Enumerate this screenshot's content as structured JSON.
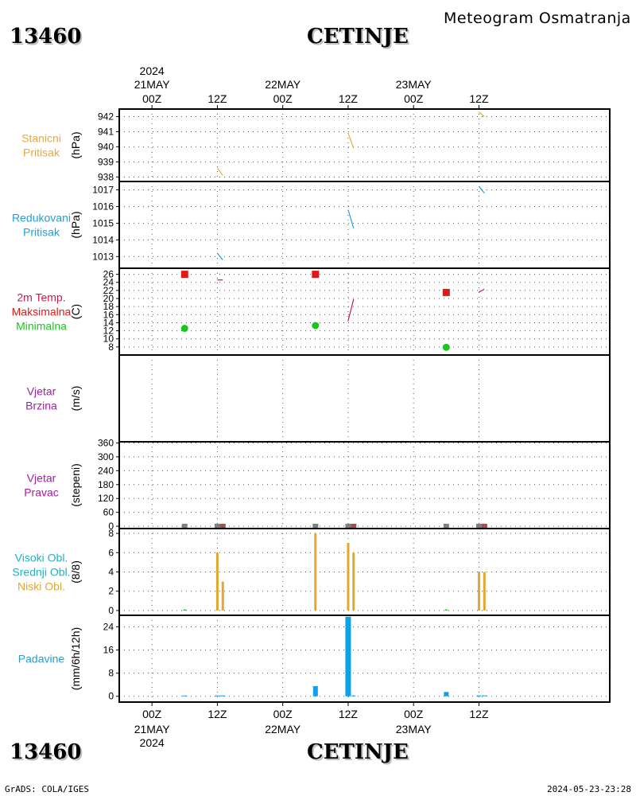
{
  "header": {
    "station_id": "13460",
    "station_name": "CETINJE",
    "subtitle": "Meteogram Osmatranja"
  },
  "footer": {
    "station_id": "13460",
    "station_name": "CETINJE",
    "credit": "GrADS: COLA/IGES",
    "timestamp": "2024-05-23-23:28"
  },
  "colors": {
    "orange": "#e8a838",
    "cyan": "#1ea0d2",
    "red": "#e01818",
    "crimson": "#c8184a",
    "green": "#18c818",
    "purple": "#a020a0",
    "teal": "#20b0c0",
    "gold": "#e0a830",
    "blue": "#10a0e8",
    "gray": "#808080",
    "brown": "#a05050"
  },
  "chart_data": {
    "type": "line",
    "x_axis": {
      "unit": "hours since 21MAY2024 00Z",
      "range": [
        -6,
        84
      ],
      "ticks": [
        {
          "x": 0,
          "label": "00Z"
        },
        {
          "x": 12,
          "label": "12Z"
        },
        {
          "x": 24,
          "label": "00Z"
        },
        {
          "x": 36,
          "label": "12Z"
        },
        {
          "x": 48,
          "label": "00Z"
        },
        {
          "x": 60,
          "label": "12Z"
        }
      ],
      "top_dates": [
        {
          "x": 0,
          "lines": [
            "2024",
            "21MAY"
          ]
        },
        {
          "x": 24,
          "lines": [
            "22MAY"
          ]
        },
        {
          "x": 48,
          "lines": [
            "23MAY"
          ]
        }
      ],
      "bottom_dates": [
        {
          "x": 0,
          "lines": [
            "21MAY",
            "2024"
          ]
        },
        {
          "x": 24,
          "lines": [
            "22MAY"
          ]
        },
        {
          "x": 48,
          "lines": [
            "23MAY"
          ]
        }
      ]
    },
    "panels": [
      {
        "id": "station-pressure",
        "labels": [
          {
            "text": "Stanicni",
            "color": "#e8a838"
          },
          {
            "text": "Pritisak",
            "color": "#e8a838"
          }
        ],
        "unit": "(hPa)",
        "ylim": [
          937.7,
          942.5
        ],
        "yticks": [
          938,
          939,
          940,
          941,
          942
        ],
        "segments": [
          {
            "color": "#e8a838",
            "points": [
              [
                12,
                938.6
              ],
              [
                13,
                938.1
              ]
            ]
          },
          {
            "color": "#e8a838",
            "points": [
              [
                36,
                940.9
              ],
              [
                37,
                939.9
              ]
            ]
          },
          {
            "color": "#e8a838",
            "points": [
              [
                60,
                942.3
              ],
              [
                61,
                942.0
              ]
            ]
          }
        ]
      },
      {
        "id": "reduced-pressure",
        "labels": [
          {
            "text": "Redukovani",
            "color": "#1ea0d2"
          },
          {
            "text": "Pritisak",
            "color": "#1ea0d2"
          }
        ],
        "unit": "(hPa)",
        "ylim": [
          1012.3,
          1017.5
        ],
        "yticks": [
          1013,
          1014,
          1015,
          1016,
          1017
        ],
        "segments": [
          {
            "color": "#1ea0d2",
            "points": [
              [
                12,
                1013.2
              ],
              [
                13,
                1012.8
              ]
            ]
          },
          {
            "color": "#1ea0d2",
            "points": [
              [
                36,
                1015.8
              ],
              [
                37,
                1014.7
              ]
            ]
          },
          {
            "color": "#1ea0d2",
            "points": [
              [
                60,
                1017.2
              ],
              [
                61,
                1016.8
              ]
            ]
          }
        ]
      },
      {
        "id": "temperature",
        "labels": [
          {
            "text": "2m Temp.",
            "color": "#c8184a"
          },
          {
            "text": "Maksimalna",
            "color": "#e01818"
          },
          {
            "text": "Minimalna",
            "color": "#18c818"
          }
        ],
        "unit": "(C)",
        "ylim": [
          6,
          27.5
        ],
        "yticks": [
          8,
          10,
          12,
          14,
          16,
          18,
          20,
          22,
          24,
          26
        ],
        "segments": [
          {
            "color": "#c8184a",
            "points": [
              [
                12,
                24.6
              ],
              [
                13,
                24.6
              ]
            ]
          },
          {
            "color": "#c8184a",
            "points": [
              [
                36,
                14.5
              ],
              [
                37,
                19.8
              ]
            ]
          },
          {
            "color": "#c8184a",
            "points": [
              [
                60,
                21.6
              ],
              [
                61,
                22.3
              ]
            ]
          }
        ],
        "max_markers": [
          [
            6,
            26.0
          ],
          [
            30,
            26.0
          ],
          [
            54,
            21.5
          ]
        ],
        "min_markers": [
          [
            6,
            12.6
          ],
          [
            30,
            13.3
          ],
          [
            54,
            7.9
          ]
        ]
      },
      {
        "id": "wind-speed",
        "labels": [
          {
            "text": "Vjetar",
            "color": "#a020a0"
          },
          {
            "text": "Brzina",
            "color": "#a020a0"
          }
        ],
        "unit": "(m/s)",
        "ylim": [
          0,
          1
        ],
        "yticks": []
      },
      {
        "id": "wind-direction",
        "labels": [
          {
            "text": "Vjetar",
            "color": "#a020a0"
          },
          {
            "text": "Pravac",
            "color": "#a020a0"
          }
        ],
        "unit": "(stepeni)",
        "ylim": [
          -10,
          365
        ],
        "yticks": [
          0,
          60,
          120,
          180,
          240,
          300,
          360
        ],
        "markers": [
          {
            "x": 6,
            "color": "#808080"
          },
          {
            "x": 12,
            "color": "#808080"
          },
          {
            "x": 13,
            "color": "#a05050"
          },
          {
            "x": 30,
            "color": "#808080"
          },
          {
            "x": 36,
            "color": "#808080"
          },
          {
            "x": 37,
            "color": "#a05050"
          },
          {
            "x": 54,
            "color": "#808080"
          },
          {
            "x": 60,
            "color": "#808080"
          },
          {
            "x": 61,
            "color": "#a05050"
          }
        ]
      },
      {
        "id": "clouds",
        "labels": [
          {
            "text": "Visoki Obl.",
            "color": "#20b0c0"
          },
          {
            "text": "Srednji Obl.",
            "color": "#20b0c0"
          },
          {
            "text": "Niski Obl.",
            "color": "#e0a830"
          }
        ],
        "unit": "(8/8)",
        "ylim": [
          -0.5,
          8.5
        ],
        "yticks": [
          0,
          2,
          4,
          6,
          8
        ],
        "bars": [
          {
            "x": 6,
            "value": 0.1,
            "color": "#18a818"
          },
          {
            "x": 12,
            "value": 6,
            "color": "#e0a830"
          },
          {
            "x": 13,
            "value": 3,
            "color": "#e0a830"
          },
          {
            "x": 30,
            "value": 8,
            "color": "#e0a830"
          },
          {
            "x": 36,
            "value": 7,
            "color": "#e0a830"
          },
          {
            "x": 37,
            "value": 6,
            "color": "#e0a830"
          },
          {
            "x": 54,
            "value": 0.1,
            "color": "#18a818"
          },
          {
            "x": 60,
            "value": 4,
            "color": "#e0a830"
          },
          {
            "x": 61,
            "value": 4,
            "color": "#e0a830"
          }
        ]
      },
      {
        "id": "precipitation",
        "labels": [
          {
            "text": "Padavine",
            "color": "#1ea0d2"
          }
        ],
        "unit": "(mm/6h/12h)",
        "ylim": [
          -2,
          28
        ],
        "yticks": [
          0,
          8,
          16,
          24
        ],
        "bars": [
          {
            "x": 6,
            "value": 0.2,
            "color": "#10a0e8",
            "width": 6
          },
          {
            "x": 12,
            "value": 0.3,
            "color": "#10a0e8",
            "width": 6
          },
          {
            "x": 13,
            "value": 0.3,
            "color": "#10a0e8",
            "width": 6
          },
          {
            "x": 30,
            "value": 3.5,
            "color": "#10a0e8",
            "width": 6
          },
          {
            "x": 36,
            "value": 27.5,
            "color": "#10a0e8",
            "width": 7
          },
          {
            "x": 37,
            "value": 0.3,
            "color": "#10a0e8",
            "width": 5
          },
          {
            "x": 54,
            "value": 1.5,
            "color": "#10a0e8",
            "width": 6
          },
          {
            "x": 60,
            "value": 0.3,
            "color": "#10a0e8",
            "width": 6
          },
          {
            "x": 61,
            "value": 0.3,
            "color": "#10a0e8",
            "width": 6
          }
        ]
      }
    ]
  }
}
